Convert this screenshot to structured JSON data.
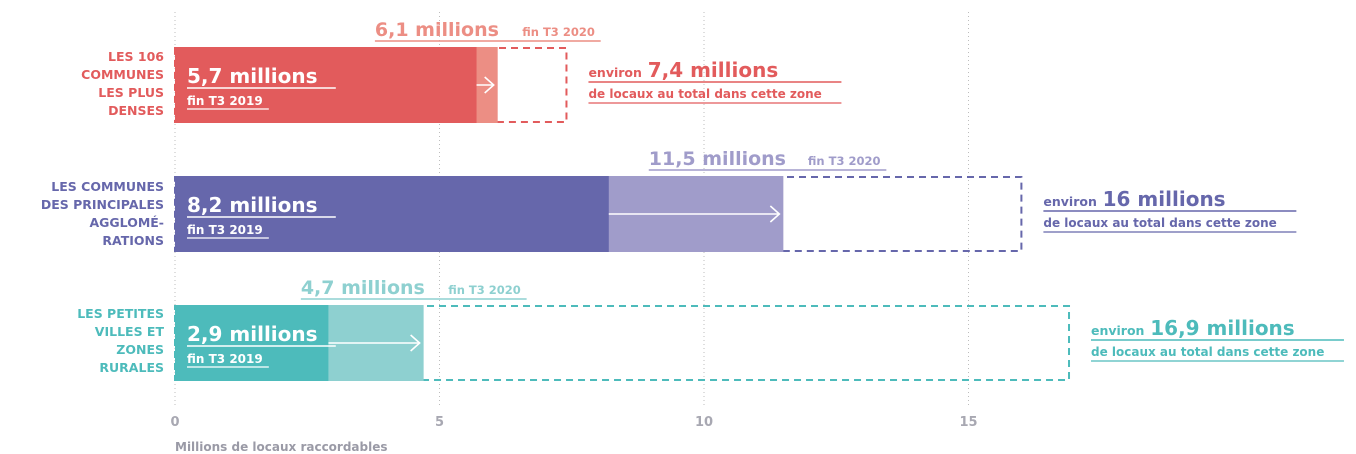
{
  "colors": {
    "grid": "#bdbdbd",
    "tick": "#a8a8b2"
  },
  "chart_data": {
    "type": "bar",
    "xlabel": "Millions de locaux raccordables",
    "xlim": [
      0,
      20
    ],
    "xticks": [
      0,
      5,
      10,
      15
    ],
    "series": [
      {
        "category": "LES 106 COMMUNES LES PLUS DENSES",
        "category_lines": [
          "LES 106",
          "COMMUNES",
          "LES PLUS",
          "DENSES"
        ],
        "value_2019": 5.7,
        "label_2019": "5,7 millions",
        "sub_2019": "fin T3 2019",
        "value_2020": 6.1,
        "label_2020": "6,1 millions",
        "sub_2020": "fin T3 2020",
        "total": 7.4,
        "total_prefix": "environ",
        "total_value": "7,4 millions",
        "total_text": "de locaux au total dans cette zone",
        "color": "#e25b5c",
        "light": "#ec8e84"
      },
      {
        "category": "LES COMMUNES DES PRINCIPALES AGGLOMÉRATIONS",
        "category_lines": [
          "LES COMMUNES",
          "DES PRINCIPALES",
          "AGGLOMÉ-",
          "RATIONS"
        ],
        "value_2019": 8.2,
        "label_2019": "8,2 millions",
        "sub_2019": "fin T3 2019",
        "value_2020": 11.5,
        "label_2020": "11,5 millions",
        "sub_2020": "fin T3 2020",
        "total": 16,
        "total_prefix": "environ",
        "total_value": "16 millions",
        "total_text": "de locaux au total dans cette zone",
        "color": "#6667ab",
        "light": "#a09cca"
      },
      {
        "category": "LES PETITES VILLES ET ZONES RURALES",
        "category_lines": [
          "LES PETITES",
          "VILLES ET",
          "ZONES",
          "RURALES"
        ],
        "value_2019": 2.9,
        "label_2019": "2,9 millions",
        "sub_2019": "fin T3 2019",
        "value_2020": 4.7,
        "label_2020": "4,7 millions",
        "sub_2020": "fin T3 2020",
        "total": 16.9,
        "total_prefix": "environ",
        "total_value": "16,9 millions",
        "total_text": "de locaux au total dans cette zone",
        "color": "#4dbbbb",
        "light": "#8ed0d0"
      }
    ]
  }
}
